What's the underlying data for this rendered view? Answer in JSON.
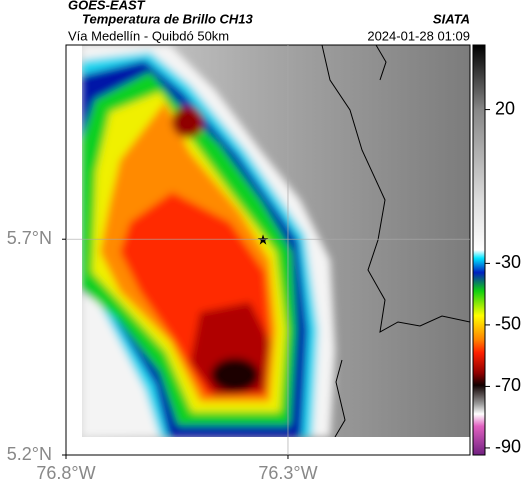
{
  "header": {
    "source": "GOES-EAST",
    "title": "Temperatura de Brillo CH13",
    "credit": "SIATA",
    "route": "Vía Medellín - Quibdó 50km",
    "timestamp": "2024-01-28 01:09"
  },
  "map": {
    "xlim": [
      -76.8,
      -75.89
    ],
    "ylim": [
      5.2,
      6.15
    ],
    "xticks": [
      {
        "value": -76.8,
        "label": "76.8°W"
      },
      {
        "value": -76.3,
        "label": "76.3°W"
      }
    ],
    "yticks": [
      {
        "value": 5.7,
        "label": "5.7°N"
      },
      {
        "value": 5.2,
        "label": "5.2°N"
      }
    ],
    "grid": true
  },
  "colorbar": {
    "lim": [
      -92.3,
      41
    ],
    "ticks": [
      20,
      -30,
      -50,
      -70,
      -90
    ]
  }
}
